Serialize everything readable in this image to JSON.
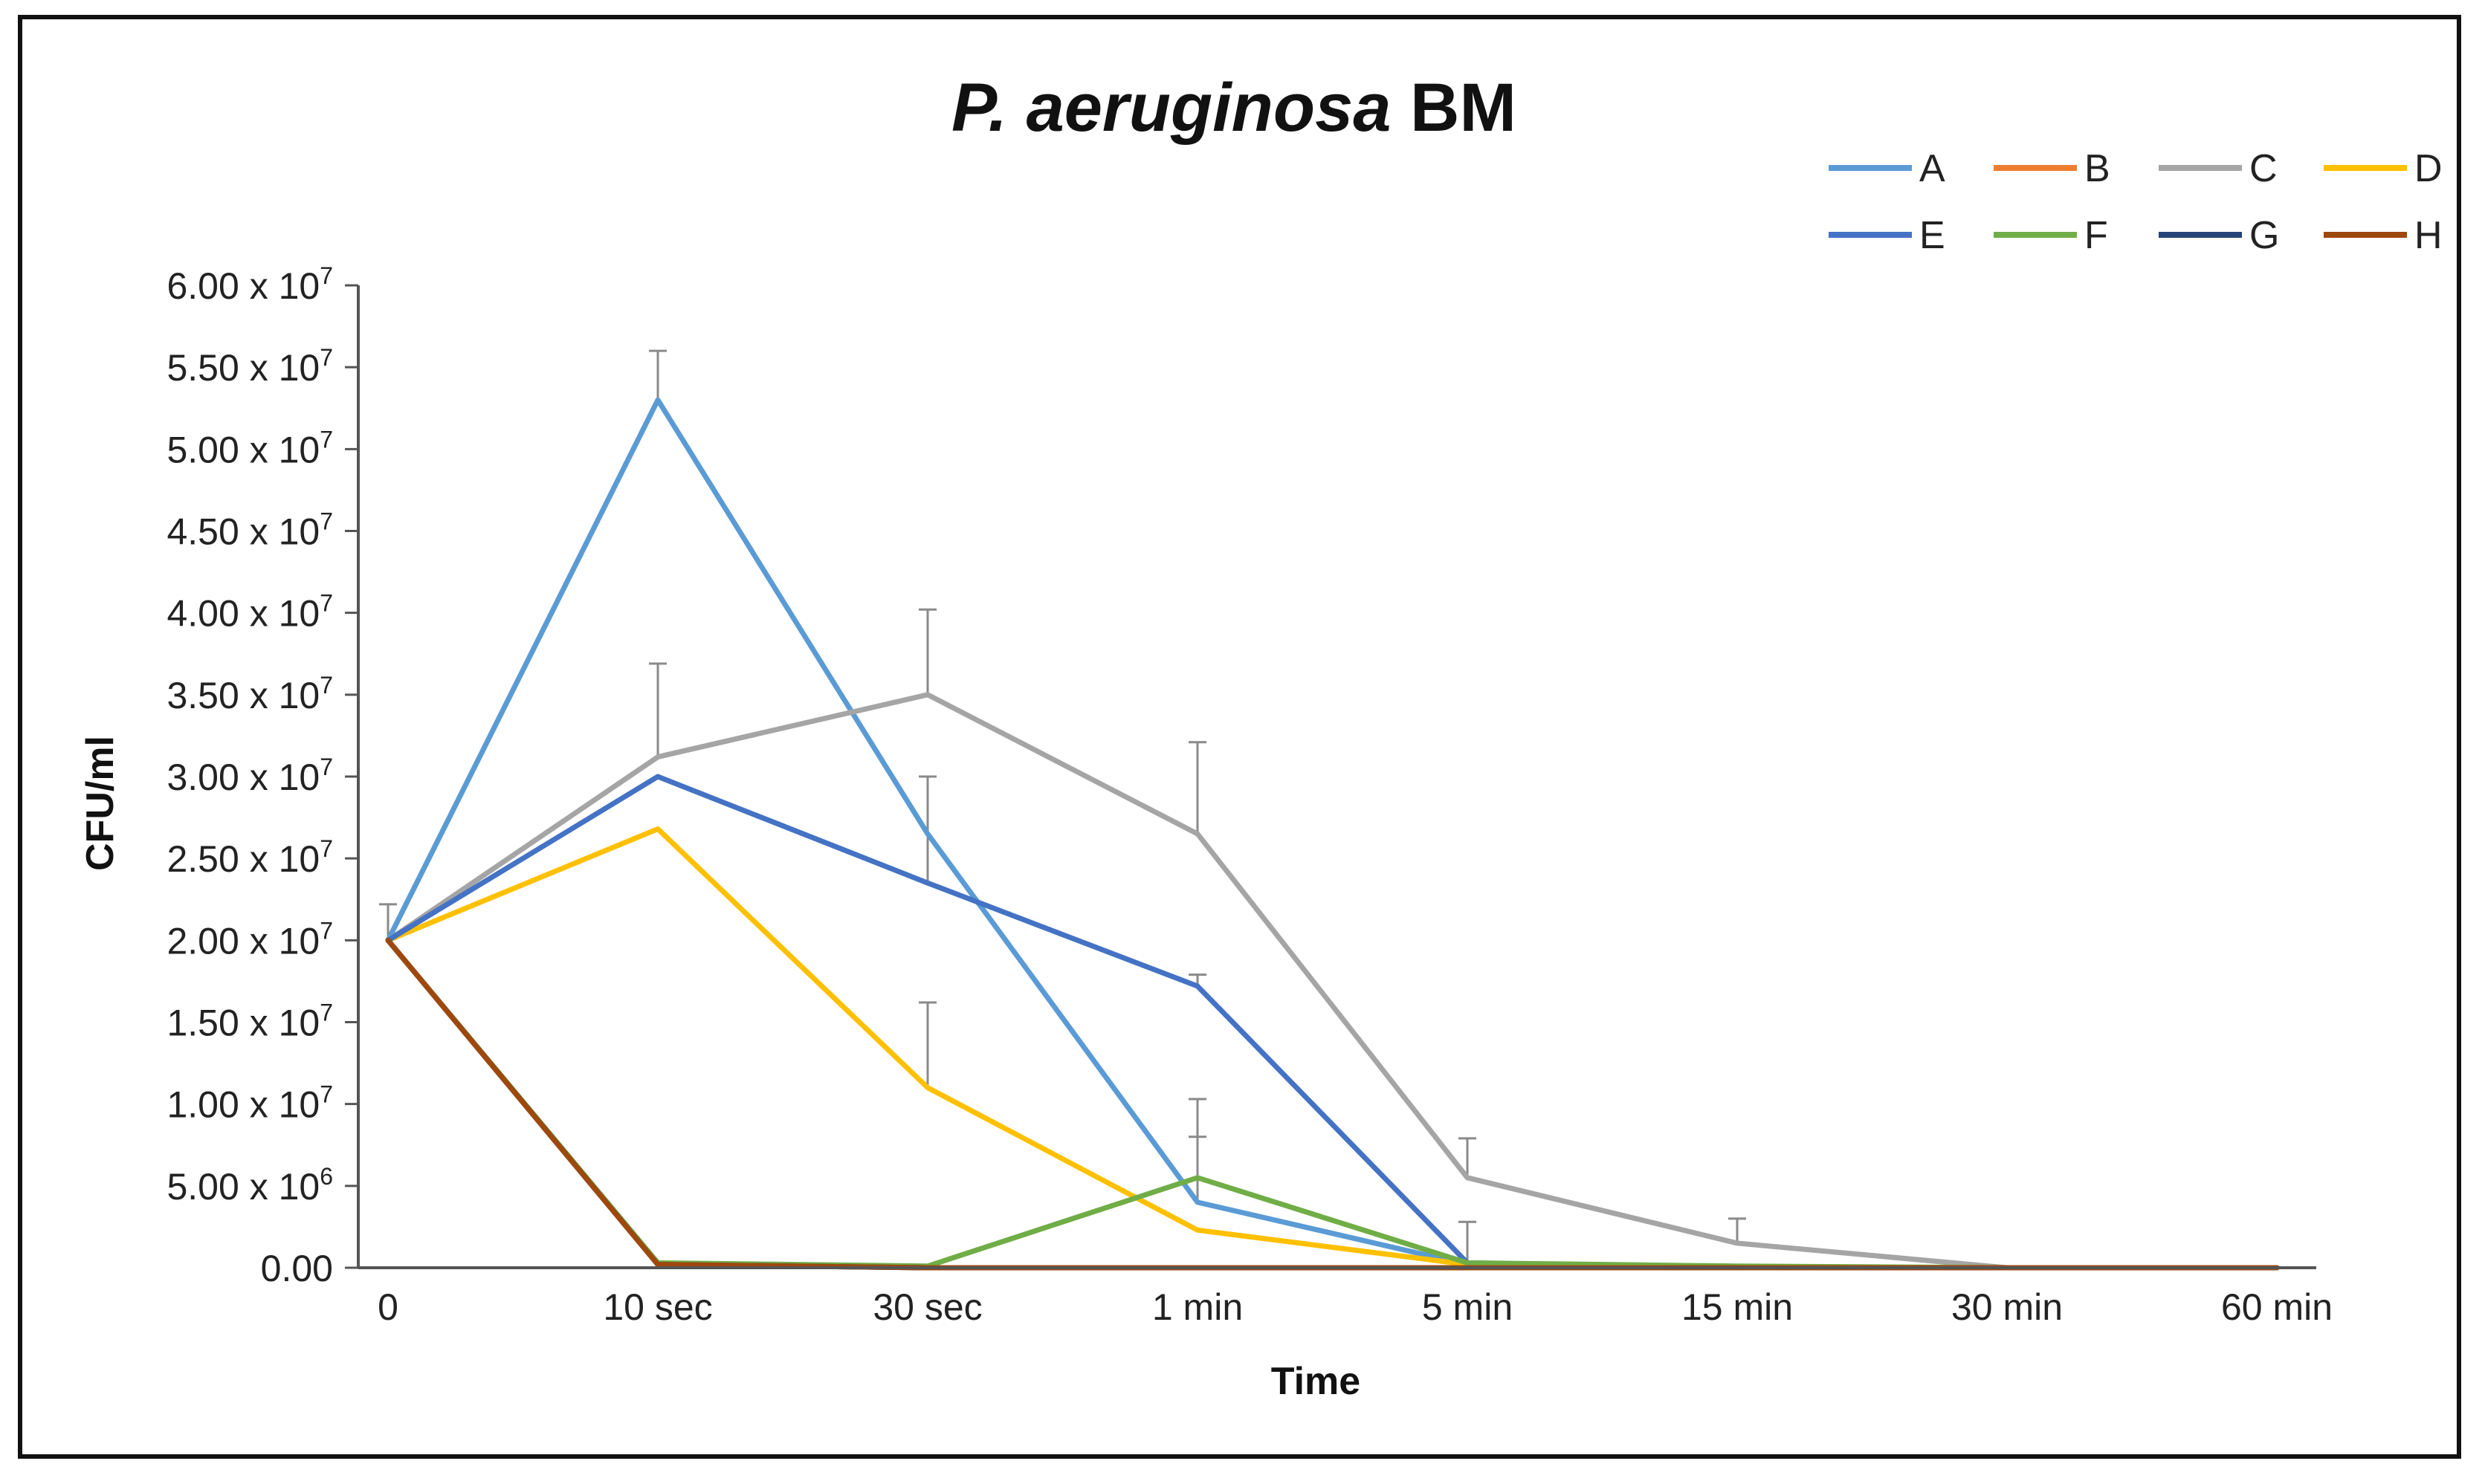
{
  "chart_data": {
    "type": "line",
    "title": {
      "italic": "P. aeruginosa",
      "rest": " BM"
    },
    "xlabel": "Time",
    "ylabel": "CFU/ml",
    "categories": [
      "0",
      "10 sec",
      "30 sec",
      "1 min",
      "5 min",
      "15 min",
      "30 min",
      "60 min"
    ],
    "ylim": [
      0,
      60000000
    ],
    "y_ticks": [
      {
        "value": 0,
        "mantissa": "0.00",
        "exp": ""
      },
      {
        "value": 5000000,
        "mantissa": "5.00 x 10",
        "exp": "6"
      },
      {
        "value": 10000000,
        "mantissa": "1.00 x 10",
        "exp": "7"
      },
      {
        "value": 15000000,
        "mantissa": "1.50 x 10",
        "exp": "7"
      },
      {
        "value": 20000000,
        "mantissa": "2.00 x 10",
        "exp": "7"
      },
      {
        "value": 25000000,
        "mantissa": "2.50 x 10",
        "exp": "7"
      },
      {
        "value": 30000000,
        "mantissa": "3.00 x 10",
        "exp": "7"
      },
      {
        "value": 35000000,
        "mantissa": "3.50 x 10",
        "exp": "7"
      },
      {
        "value": 40000000,
        "mantissa": "4.00 x 10",
        "exp": "7"
      },
      {
        "value": 45000000,
        "mantissa": "4.50 x 10",
        "exp": "7"
      },
      {
        "value": 50000000,
        "mantissa": "5.00 x 10",
        "exp": "7"
      },
      {
        "value": 55000000,
        "mantissa": "5.50 x 10",
        "exp": "7"
      },
      {
        "value": 60000000,
        "mantissa": "6.00 x 10",
        "exp": "7"
      }
    ],
    "legend_position": "top-right",
    "series": [
      {
        "name": "A",
        "color": "#5B9BD5",
        "values": [
          20000000,
          53000000,
          26500000,
          4000000,
          200000,
          0,
          0,
          0
        ],
        "errors": [
          0,
          3000000,
          3500000,
          4000000,
          0,
          0,
          0,
          0
        ]
      },
      {
        "name": "B",
        "color": "#ED7D31",
        "values": [
          20000000,
          200000,
          0,
          0,
          0,
          0,
          0,
          0
        ],
        "errors": [
          0,
          0,
          0,
          0,
          0,
          0,
          0,
          0
        ]
      },
      {
        "name": "C",
        "color": "#A5A5A5",
        "values": [
          20000000,
          31200000,
          35000000,
          26500000,
          5500000,
          1500000,
          0,
          0
        ],
        "errors": [
          2200000,
          5700000,
          5200000,
          5600000,
          2400000,
          1500000,
          0,
          0
        ]
      },
      {
        "name": "D",
        "color": "#FFC000",
        "values": [
          20000000,
          26800000,
          11000000,
          2300000,
          200000,
          0,
          0,
          0
        ],
        "errors": [
          0,
          0,
          5200000,
          0,
          0,
          0,
          0,
          0
        ]
      },
      {
        "name": "E",
        "color": "#4472C4",
        "values": [
          20000000,
          30000000,
          23500000,
          17200000,
          300000,
          0,
          0,
          0
        ],
        "errors": [
          0,
          0,
          6500000,
          700000,
          0,
          0,
          0,
          0
        ]
      },
      {
        "name": "F",
        "color": "#70AD47",
        "values": [
          20000000,
          300000,
          100000,
          5500000,
          300000,
          100000,
          0,
          0
        ],
        "errors": [
          0,
          0,
          0,
          4800000,
          2500000,
          0,
          0,
          0
        ]
      },
      {
        "name": "G",
        "color": "#264478",
        "values": [
          20000000,
          200000,
          0,
          0,
          0,
          0,
          0,
          0
        ],
        "errors": [
          0,
          0,
          0,
          0,
          0,
          0,
          0,
          0
        ]
      },
      {
        "name": "H",
        "color": "#9E480E",
        "values": [
          20000000,
          200000,
          0,
          0,
          0,
          0,
          0,
          0
        ],
        "errors": [
          0,
          0,
          0,
          0,
          0,
          0,
          0,
          0
        ]
      }
    ]
  }
}
